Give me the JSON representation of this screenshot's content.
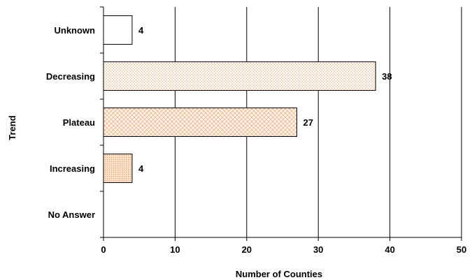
{
  "chart_data": {
    "type": "bar",
    "orientation": "horizontal",
    "categories": [
      "Unknown",
      "Decreasing",
      "Plateau",
      "Increasing",
      "No Answer"
    ],
    "values": [
      4,
      38,
      27,
      4,
      null
    ],
    "data_labels": [
      "4",
      "38",
      "27",
      "4",
      ""
    ],
    "xlabel": "Number of Counties",
    "ylabel": "Trend",
    "xlim": [
      0,
      50
    ],
    "xticks": [
      "0",
      "10",
      "20",
      "30",
      "40",
      "50"
    ],
    "grid": "vertical",
    "legend": "none",
    "bar_fills": [
      "white",
      "dotted-peach",
      "crosshatch-peach",
      "dense-dotted-peach",
      "none"
    ],
    "colors": {
      "bar_edge": "#000000",
      "peach": "#f4a672",
      "grid": "#000000"
    }
  }
}
